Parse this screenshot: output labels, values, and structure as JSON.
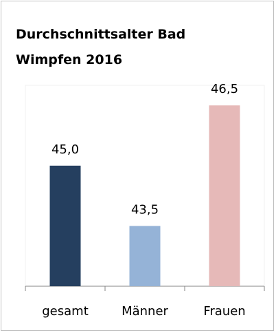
{
  "chart_data": {
    "type": "bar",
    "title": "Durchschnittsalter Bad Wimpfen 2016",
    "categories": [
      "gesamt",
      "Männer",
      "Frauen"
    ],
    "values": [
      45.0,
      43.5,
      46.5
    ],
    "value_labels": [
      "45,0",
      "43,5",
      "46,5"
    ],
    "colors": [
      "#253f5f",
      "#95b3d7",
      "#e6b9b8"
    ],
    "ylim": [
      42,
      47
    ]
  }
}
